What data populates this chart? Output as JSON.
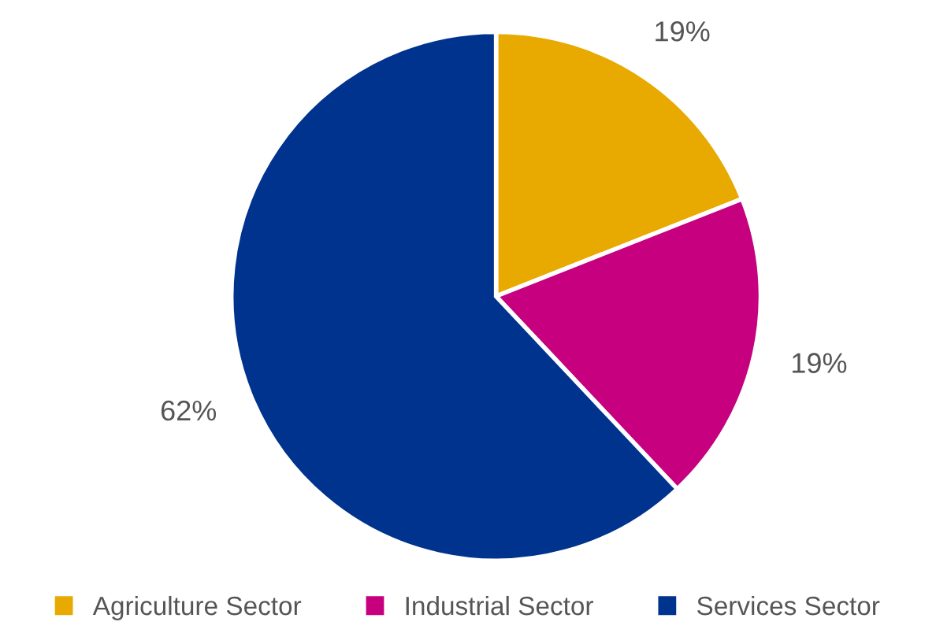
{
  "chart_data": {
    "type": "pie",
    "categories": [
      "Agriculture Sector",
      "Industrial Sector",
      "Services Sector"
    ],
    "values": [
      19,
      19,
      62
    ],
    "colors": [
      "#e8a900",
      "#c6007e",
      "#00338d"
    ],
    "value_labels": [
      "19%",
      "19%",
      "62%"
    ],
    "legend": "bottom"
  }
}
